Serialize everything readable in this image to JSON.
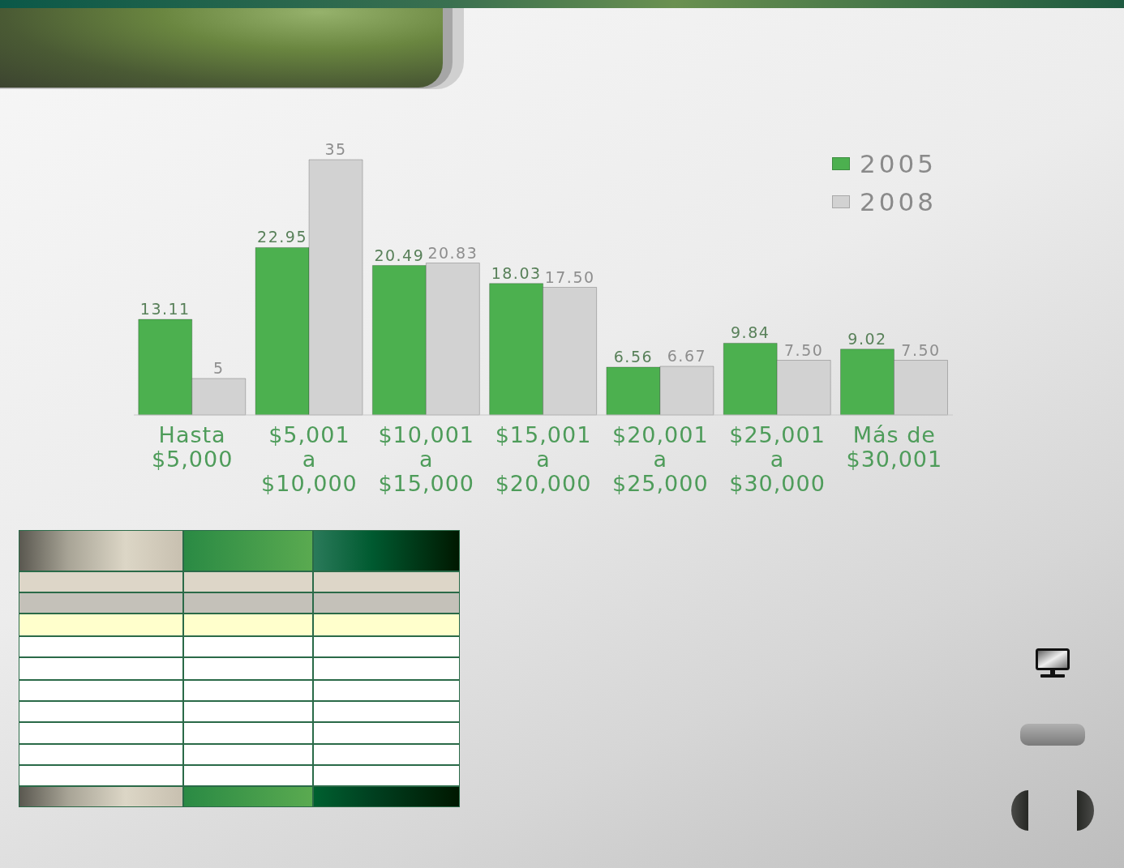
{
  "chart_data": {
    "type": "bar",
    "categories": [
      "Hasta\n$5,000",
      "$5,001\na\n$10,000",
      "$10,001\na\n$15,000",
      "$15,001\na\n$20,000",
      "$20,001\na\n$25,000",
      "$25,001\na\n$30,000",
      "Más de\n$30,001"
    ],
    "series": [
      {
        "name": "2005",
        "color": "#4cb04f",
        "values": [
          13.11,
          22.95,
          20.49,
          18.03,
          6.56,
          9.84,
          9.02
        ],
        "value_labels": [
          "13.11",
          "22.95",
          "20.49",
          "18.03",
          "6.56",
          "9.84",
          "9.02"
        ]
      },
      {
        "name": "2008",
        "color": "#d2d2d2",
        "values": [
          5,
          35,
          20.83,
          17.5,
          6.67,
          7.5,
          7.5
        ],
        "value_labels": [
          "5",
          "35",
          "20.83",
          "17.50",
          "6.67",
          "7.50",
          "7.50"
        ]
      }
    ],
    "legend": "top right",
    "tick_labels": "x"
  }
}
